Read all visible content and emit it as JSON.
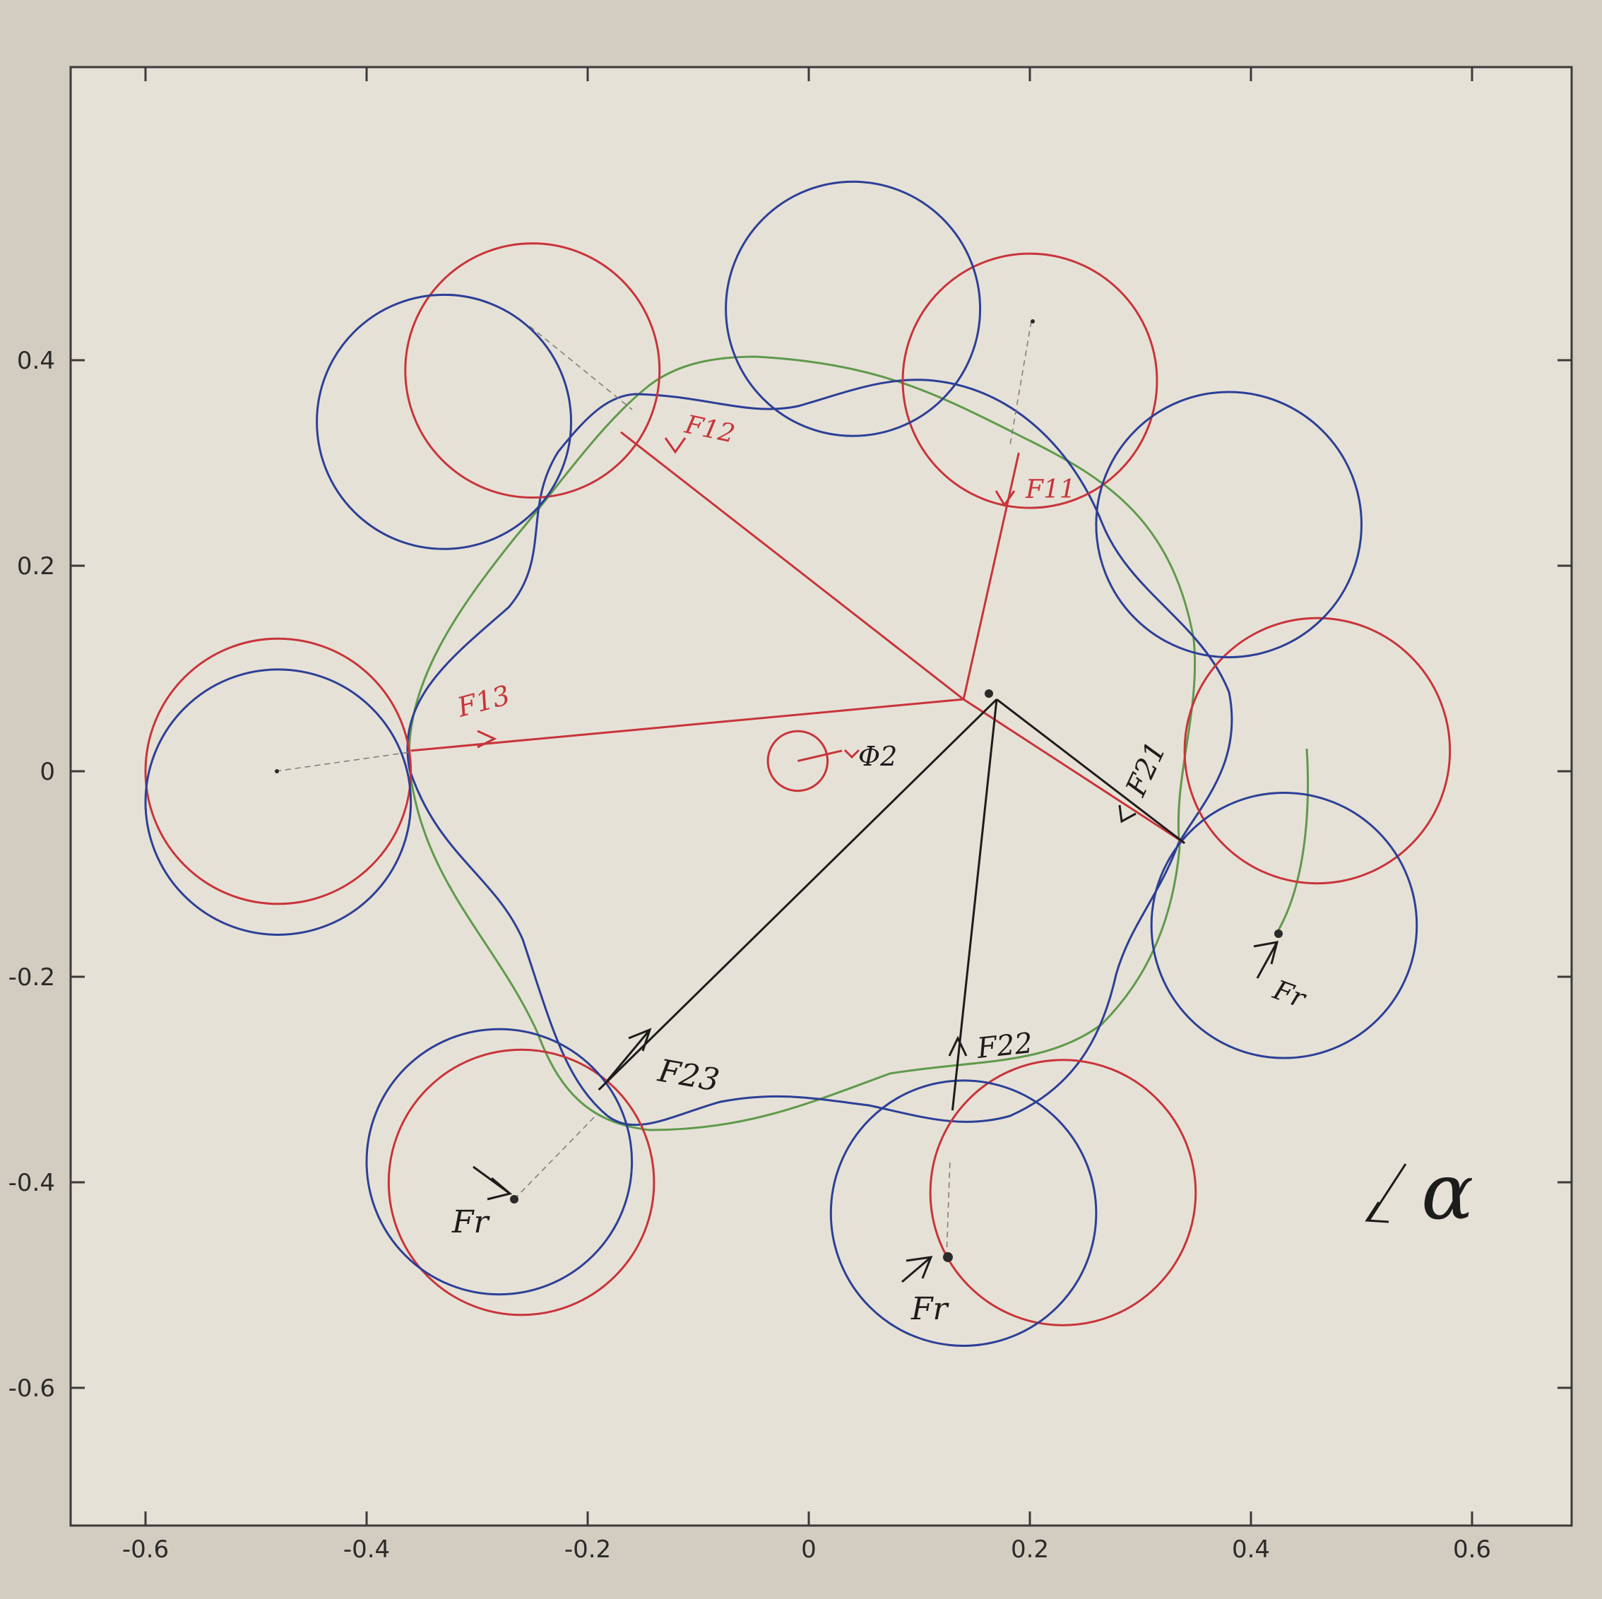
{
  "chart_data": {
    "type": "scatter",
    "title": "",
    "xlabel": "",
    "ylabel": "",
    "xlim": [
      -0.7,
      0.7
    ],
    "ylim": [
      -0.7,
      0.6
    ],
    "x_ticks": [
      -0.6,
      -0.4,
      -0.2,
      0,
      0.2,
      0.4,
      0.6
    ],
    "x_tick_labels": [
      "-0.6",
      "-0.4",
      "-0.2",
      "0",
      "0.2",
      "0.4",
      "0.6"
    ],
    "y_ticks": [
      0.4,
      0.2,
      0,
      -0.2,
      -0.4,
      -0.6
    ],
    "y_tick_labels": [
      "0.4",
      "0.2",
      "0",
      "-0.2",
      "-0.4",
      "-0.6"
    ],
    "grid": false,
    "colors": {
      "red": "#c8343a",
      "blue": "#2c3f97",
      "green": "#5f9a4c",
      "ink": "#1c1c1c"
    },
    "circles_red": [
      {
        "cx": -0.25,
        "cy": 0.39,
        "r": 0.115
      },
      {
        "cx": 0.2,
        "cy": 0.38,
        "r": 0.115
      },
      {
        "cx": 0.46,
        "cy": 0.02,
        "r": 0.12
      },
      {
        "cx": 0.23,
        "cy": -0.41,
        "r": 0.12
      },
      {
        "cx": -0.26,
        "cy": -0.4,
        "r": 0.12
      },
      {
        "cx": -0.48,
        "cy": 0.0,
        "r": 0.12
      },
      {
        "cx": -0.01,
        "cy": 0.01,
        "r": 0.027
      }
    ],
    "circles_blue": [
      {
        "cx": -0.33,
        "cy": 0.34,
        "r": 0.115
      },
      {
        "cx": 0.04,
        "cy": 0.45,
        "r": 0.115
      },
      {
        "cx": 0.38,
        "cy": 0.24,
        "r": 0.12
      },
      {
        "cx": 0.43,
        "cy": -0.15,
        "r": 0.12
      },
      {
        "cx": 0.14,
        "cy": -0.43,
        "r": 0.12
      },
      {
        "cx": -0.28,
        "cy": -0.38,
        "r": 0.12
      },
      {
        "cx": -0.48,
        "cy": -0.03,
        "r": 0.12
      }
    ],
    "force_lines_red": [
      {
        "from": [
          0.14,
          0.07
        ],
        "to": [
          -0.17,
          0.33
        ]
      },
      {
        "from": [
          0.14,
          0.07
        ],
        "to": [
          0.19,
          0.31
        ]
      },
      {
        "from": [
          0.14,
          0.07
        ],
        "to": [
          0.34,
          -0.07
        ]
      },
      {
        "from": [
          0.14,
          0.07
        ],
        "to": [
          -0.36,
          0.02
        ]
      },
      {
        "from": [
          -0.01,
          0.01
        ],
        "to": [
          0.03,
          0.02
        ]
      }
    ],
    "force_lines_black": [
      {
        "from": [
          0.17,
          0.07
        ],
        "to": [
          0.34,
          -0.07
        ]
      },
      {
        "from": [
          0.17,
          0.07
        ],
        "to": [
          0.13,
          -0.33
        ]
      },
      {
        "from": [
          0.17,
          0.07
        ],
        "to": [
          -0.19,
          -0.31
        ]
      }
    ],
    "annotations": [
      "F12",
      "F11",
      "F13",
      "Φ2",
      "F21",
      "F22",
      "F23",
      "Fr",
      "Fr",
      "Fr",
      "α"
    ]
  }
}
